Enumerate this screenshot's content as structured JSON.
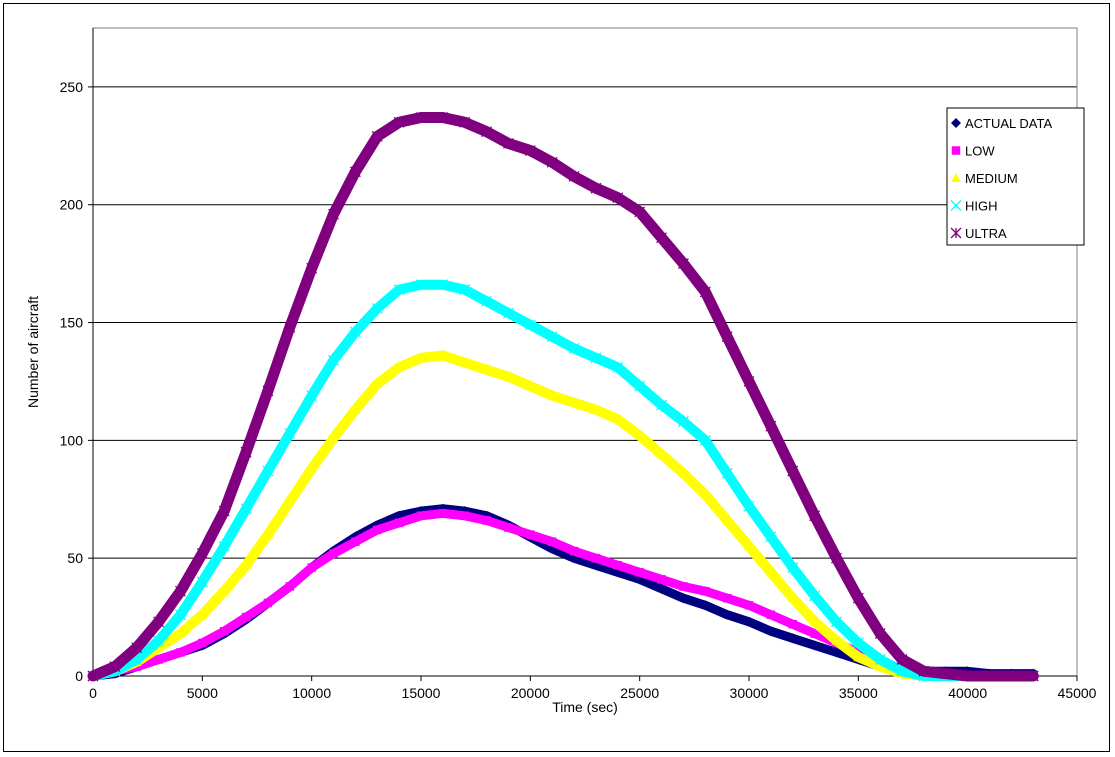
{
  "chart_data": {
    "type": "line",
    "title": "",
    "xlabel": "Time (sec)",
    "ylabel": "Number of aircraft",
    "xlim": [
      0,
      45000
    ],
    "ylim": [
      0,
      275
    ],
    "xticks": [
      0,
      5000,
      10000,
      15000,
      20000,
      25000,
      30000,
      35000,
      40000,
      45000
    ],
    "yticks": [
      0,
      50,
      100,
      150,
      200,
      250
    ],
    "grid": "horizontal",
    "legend_position": "top-right",
    "series": [
      {
        "name": "ACTUAL DATA",
        "color": "#000080",
        "marker": "diamond",
        "points": [
          [
            0,
            0
          ],
          [
            1000,
            1
          ],
          [
            2000,
            4
          ],
          [
            3000,
            7
          ],
          [
            4000,
            10
          ],
          [
            5000,
            13
          ],
          [
            6000,
            18
          ],
          [
            7000,
            24
          ],
          [
            8000,
            31
          ],
          [
            9000,
            38
          ],
          [
            10000,
            46
          ],
          [
            11000,
            53
          ],
          [
            12000,
            59
          ],
          [
            13000,
            64
          ],
          [
            14000,
            68
          ],
          [
            15000,
            70
          ],
          [
            16000,
            71
          ],
          [
            17000,
            70
          ],
          [
            18000,
            68
          ],
          [
            19000,
            64
          ],
          [
            20000,
            59
          ],
          [
            21000,
            54
          ],
          [
            22000,
            50
          ],
          [
            23000,
            47
          ],
          [
            24000,
            44
          ],
          [
            25000,
            41
          ],
          [
            26000,
            37
          ],
          [
            27000,
            33
          ],
          [
            28000,
            30
          ],
          [
            29000,
            26
          ],
          [
            30000,
            23
          ],
          [
            31000,
            19
          ],
          [
            32000,
            16
          ],
          [
            33000,
            13
          ],
          [
            34000,
            10
          ],
          [
            35000,
            7
          ],
          [
            36000,
            4
          ],
          [
            37000,
            2
          ],
          [
            38000,
            2
          ],
          [
            39000,
            2
          ],
          [
            40000,
            2
          ],
          [
            41000,
            1
          ],
          [
            42000,
            1
          ],
          [
            43000,
            1
          ]
        ]
      },
      {
        "name": "LOW",
        "color": "#FF00FF",
        "marker": "square",
        "points": [
          [
            0,
            0
          ],
          [
            1000,
            2
          ],
          [
            2000,
            4
          ],
          [
            3000,
            7
          ],
          [
            4000,
            10
          ],
          [
            5000,
            14
          ],
          [
            6000,
            19
          ],
          [
            7000,
            25
          ],
          [
            8000,
            31
          ],
          [
            9000,
            38
          ],
          [
            10000,
            46
          ],
          [
            11000,
            52
          ],
          [
            12000,
            57
          ],
          [
            13000,
            62
          ],
          [
            14000,
            65
          ],
          [
            15000,
            68
          ],
          [
            16000,
            69
          ],
          [
            17000,
            68
          ],
          [
            18000,
            66
          ],
          [
            19000,
            63
          ],
          [
            20000,
            60
          ],
          [
            21000,
            57
          ],
          [
            22000,
            53
          ],
          [
            23000,
            50
          ],
          [
            24000,
            47
          ],
          [
            25000,
            44
          ],
          [
            26000,
            41
          ],
          [
            27000,
            38
          ],
          [
            28000,
            36
          ],
          [
            29000,
            33
          ],
          [
            30000,
            30
          ],
          [
            31000,
            26
          ],
          [
            32000,
            22
          ],
          [
            33000,
            18
          ],
          [
            34000,
            14
          ],
          [
            35000,
            10
          ],
          [
            36000,
            6
          ],
          [
            37000,
            3
          ],
          [
            38000,
            1
          ],
          [
            39000,
            0
          ],
          [
            40000,
            0
          ],
          [
            43000,
            0
          ]
        ]
      },
      {
        "name": "MEDIUM",
        "color": "#FFFF00",
        "marker": "triangle",
        "points": [
          [
            0,
            0
          ],
          [
            1000,
            2
          ],
          [
            2000,
            6
          ],
          [
            3000,
            12
          ],
          [
            4000,
            18
          ],
          [
            5000,
            26
          ],
          [
            6000,
            36
          ],
          [
            7000,
            47
          ],
          [
            8000,
            60
          ],
          [
            9000,
            74
          ],
          [
            10000,
            88
          ],
          [
            11000,
            101
          ],
          [
            12000,
            113
          ],
          [
            13000,
            124
          ],
          [
            14000,
            131
          ],
          [
            15000,
            135
          ],
          [
            16000,
            136
          ],
          [
            17000,
            133
          ],
          [
            18000,
            130
          ],
          [
            19000,
            127
          ],
          [
            20000,
            123
          ],
          [
            21000,
            119
          ],
          [
            22000,
            116
          ],
          [
            23000,
            113
          ],
          [
            24000,
            109
          ],
          [
            25000,
            102
          ],
          [
            26000,
            94
          ],
          [
            27000,
            86
          ],
          [
            28000,
            77
          ],
          [
            29000,
            66
          ],
          [
            30000,
            55
          ],
          [
            31000,
            44
          ],
          [
            32000,
            33
          ],
          [
            33000,
            23
          ],
          [
            34000,
            15
          ],
          [
            35000,
            8
          ],
          [
            36000,
            4
          ],
          [
            37000,
            1
          ],
          [
            38000,
            0
          ],
          [
            39000,
            0
          ],
          [
            43000,
            0
          ]
        ]
      },
      {
        "name": "HIGH",
        "color": "#00FFFF",
        "marker": "x",
        "points": [
          [
            0,
            0
          ],
          [
            1000,
            2
          ],
          [
            2000,
            7
          ],
          [
            3000,
            15
          ],
          [
            4000,
            26
          ],
          [
            5000,
            40
          ],
          [
            6000,
            55
          ],
          [
            7000,
            71
          ],
          [
            8000,
            87
          ],
          [
            9000,
            103
          ],
          [
            10000,
            119
          ],
          [
            11000,
            134
          ],
          [
            12000,
            146
          ],
          [
            13000,
            156
          ],
          [
            14000,
            164
          ],
          [
            15000,
            166
          ],
          [
            16000,
            166
          ],
          [
            17000,
            164
          ],
          [
            18000,
            159
          ],
          [
            19000,
            154
          ],
          [
            20000,
            149
          ],
          [
            21000,
            144
          ],
          [
            22000,
            139
          ],
          [
            23000,
            135
          ],
          [
            24000,
            131
          ],
          [
            25000,
            123
          ],
          [
            26000,
            115
          ],
          [
            27000,
            108
          ],
          [
            28000,
            100
          ],
          [
            29000,
            86
          ],
          [
            30000,
            72
          ],
          [
            31000,
            59
          ],
          [
            32000,
            46
          ],
          [
            33000,
            34
          ],
          [
            34000,
            23
          ],
          [
            35000,
            14
          ],
          [
            36000,
            7
          ],
          [
            37000,
            2
          ],
          [
            38000,
            0
          ],
          [
            39000,
            0
          ],
          [
            43000,
            0
          ]
        ]
      },
      {
        "name": "ULTRA",
        "color": "#800080",
        "marker": "star",
        "points": [
          [
            0,
            0
          ],
          [
            1000,
            4
          ],
          [
            2000,
            12
          ],
          [
            3000,
            23
          ],
          [
            4000,
            36
          ],
          [
            5000,
            52
          ],
          [
            6000,
            70
          ],
          [
            7000,
            95
          ],
          [
            8000,
            121
          ],
          [
            9000,
            148
          ],
          [
            10000,
            173
          ],
          [
            11000,
            196
          ],
          [
            12000,
            214
          ],
          [
            13000,
            229
          ],
          [
            14000,
            235
          ],
          [
            15000,
            237
          ],
          [
            16000,
            237
          ],
          [
            17000,
            235
          ],
          [
            18000,
            231
          ],
          [
            19000,
            226
          ],
          [
            20000,
            223
          ],
          [
            21000,
            218
          ],
          [
            22000,
            212
          ],
          [
            23000,
            207
          ],
          [
            24000,
            203
          ],
          [
            25000,
            197
          ],
          [
            26000,
            186
          ],
          [
            27000,
            175
          ],
          [
            28000,
            163
          ],
          [
            29000,
            144
          ],
          [
            30000,
            125
          ],
          [
            31000,
            106
          ],
          [
            32000,
            87
          ],
          [
            33000,
            68
          ],
          [
            34000,
            50
          ],
          [
            35000,
            33
          ],
          [
            36000,
            18
          ],
          [
            37000,
            7
          ],
          [
            38000,
            2
          ],
          [
            39000,
            1
          ],
          [
            40000,
            0
          ],
          [
            43000,
            0
          ]
        ]
      }
    ]
  }
}
